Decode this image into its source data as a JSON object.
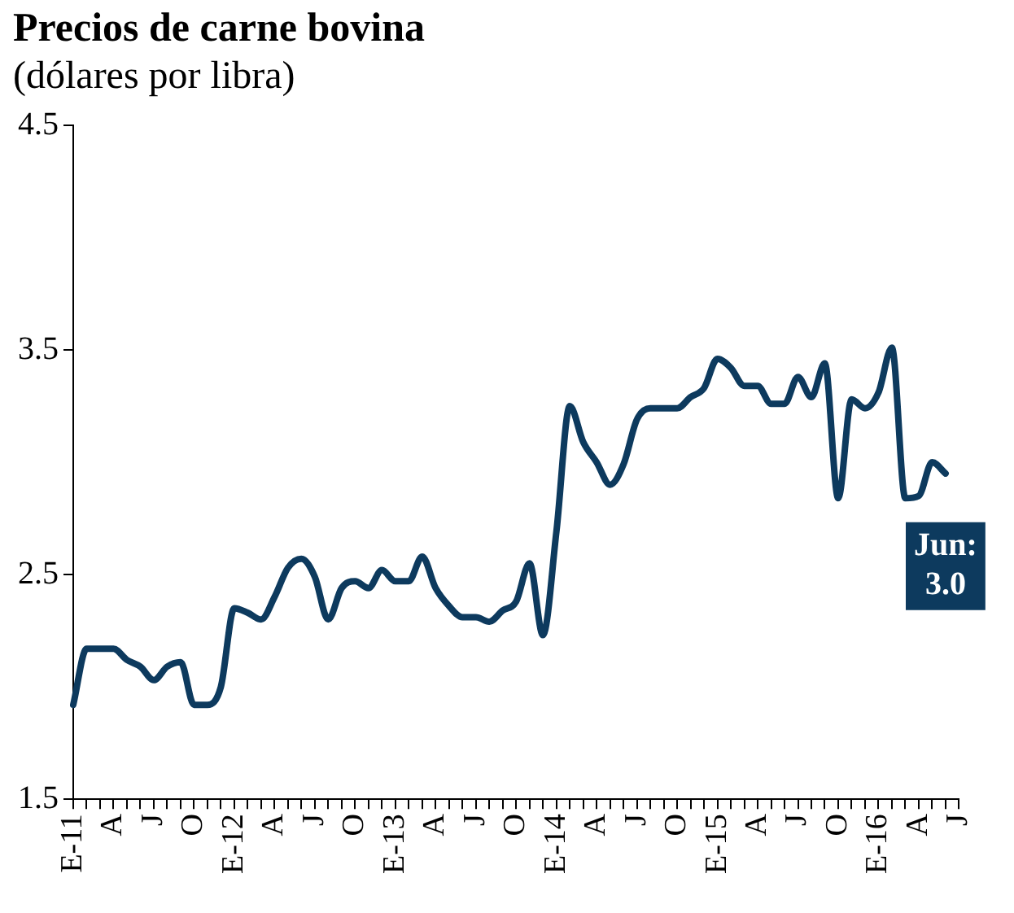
{
  "chart_data": {
    "type": "line",
    "title": "Precios de carne bovina",
    "subtitle": "(dólares por libra)",
    "categories": [
      "E-11",
      null,
      null,
      "A",
      null,
      null,
      "J",
      null,
      null,
      "O",
      null,
      null,
      "E-12",
      null,
      null,
      "A",
      null,
      null,
      "J",
      null,
      null,
      "O",
      null,
      null,
      "E-13",
      null,
      null,
      "A",
      null,
      null,
      "J",
      null,
      null,
      "O",
      null,
      null,
      "E-14",
      null,
      null,
      "A",
      null,
      null,
      "J",
      null,
      null,
      "O",
      null,
      null,
      "E-15",
      null,
      null,
      "A",
      null,
      null,
      "J",
      null,
      null,
      "O",
      null,
      null,
      "E-16",
      null,
      null,
      "A",
      null,
      null,
      "J"
    ],
    "series": [
      {
        "color": "#0d3a5e",
        "values": [
          1.92,
          2.17,
          2.17,
          2.17,
          2.12,
          2.09,
          2.03,
          2.09,
          2.11,
          1.92,
          1.92,
          2.0,
          2.35,
          2.33,
          2.3,
          2.4,
          2.53,
          2.57,
          2.49,
          2.3,
          2.44,
          2.47,
          2.44,
          2.52,
          2.47,
          2.47,
          2.58,
          2.44,
          2.36,
          2.31,
          2.31,
          2.29,
          2.34,
          2.38,
          2.55,
          2.23,
          2.69,
          3.25,
          3.09,
          3.0,
          2.9,
          2.99,
          3.19,
          3.24,
          3.24,
          3.24,
          3.29,
          3.33,
          3.46,
          3.42,
          3.34,
          3.34,
          3.26,
          3.26,
          3.38,
          3.29,
          3.44,
          2.84,
          3.28,
          3.24,
          3.31,
          3.51,
          2.84,
          2.85,
          3.0,
          2.95,
          null
        ]
      }
    ],
    "ylim": [
      1.5,
      4.5
    ],
    "yticks": [
      1.5,
      2.5,
      3.5,
      4.5
    ],
    "annotations": [
      "Jun: 3.0"
    ],
    "legend": false,
    "marker": "none",
    "line_style": "solid"
  }
}
